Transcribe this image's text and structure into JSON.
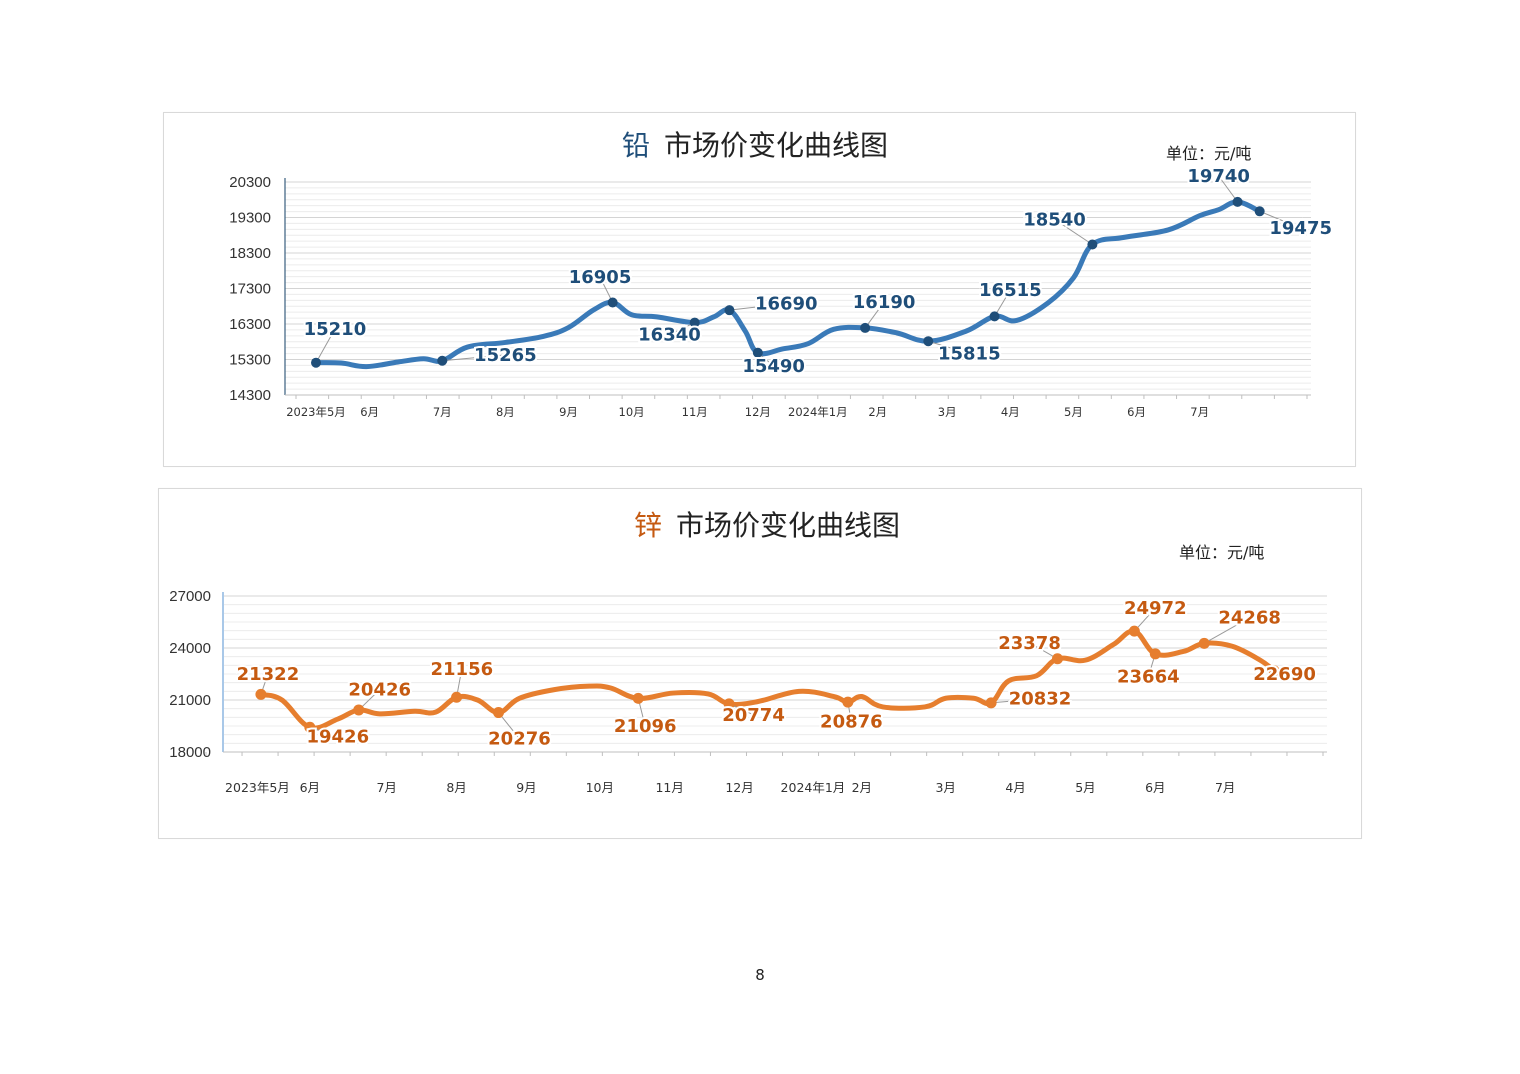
{
  "page": {
    "page_number": "8"
  },
  "chart_data": [
    {
      "type": "line",
      "metal": "铅",
      "title_rest": "市场价变化曲线图",
      "unit": "单位：元/吨",
      "colors": {
        "line": "#3a7ab8",
        "label": "#1f4e79",
        "metal": "#1f4e79"
      },
      "ylim": [
        14300,
        20300
      ],
      "yticks": [
        "20300",
        "19300",
        "18300",
        "17300",
        "16300",
        "15300",
        "14300"
      ],
      "xlim": [
        0,
        15.7
      ],
      "xticks": [
        "2023年5月",
        "6月",
        "7月",
        "8月",
        "9月",
        "10月",
        "11月",
        "12月",
        "2024年1月",
        "2月",
        "3月",
        "4月",
        "5月",
        "6月",
        "7月"
      ],
      "xtick_pos": [
        0,
        0.85,
        2.0,
        3.0,
        4.0,
        5.0,
        6.0,
        7.0,
        7.95,
        8.9,
        10.0,
        11.0,
        12.0,
        13.0,
        14.0
      ],
      "curve": [
        [
          0.0,
          15210
        ],
        [
          0.4,
          15200
        ],
        [
          0.8,
          15100
        ],
        [
          1.3,
          15230
        ],
        [
          1.7,
          15320
        ],
        [
          2.0,
          15265
        ],
        [
          2.4,
          15650
        ],
        [
          3.0,
          15780
        ],
        [
          3.6,
          15950
        ],
        [
          4.0,
          16200
        ],
        [
          4.4,
          16700
        ],
        [
          4.7,
          16905
        ],
        [
          5.0,
          16560
        ],
        [
          5.4,
          16500
        ],
        [
          6.0,
          16340
        ],
        [
          6.3,
          16500
        ],
        [
          6.55,
          16690
        ],
        [
          6.8,
          16100
        ],
        [
          7.0,
          15490
        ],
        [
          7.4,
          15600
        ],
        [
          7.8,
          15750
        ],
        [
          8.2,
          16150
        ],
        [
          8.7,
          16190
        ],
        [
          9.2,
          16050
        ],
        [
          9.7,
          15815
        ],
        [
          10.3,
          16100
        ],
        [
          10.75,
          16515
        ],
        [
          11.1,
          16400
        ],
        [
          11.6,
          16900
        ],
        [
          12.0,
          17600
        ],
        [
          12.3,
          18540
        ],
        [
          12.8,
          18740
        ],
        [
          13.5,
          18950
        ],
        [
          14.0,
          19350
        ],
        [
          14.3,
          19520
        ],
        [
          14.6,
          19740
        ],
        [
          14.95,
          19475
        ]
      ],
      "points": [
        {
          "x": 0.0,
          "y": 15210,
          "label": "15210",
          "lx": 0.3,
          "ly": 15990
        },
        {
          "x": 2.0,
          "y": 15265,
          "label": "15265",
          "lx": 3.0,
          "ly": 15260
        },
        {
          "x": 4.7,
          "y": 16905,
          "label": "16905",
          "lx": 4.5,
          "ly": 17450
        },
        {
          "x": 6.0,
          "y": 16340,
          "label": "16340",
          "lx": 5.6,
          "ly": 15830
        },
        {
          "x": 6.55,
          "y": 16690,
          "label": "16690",
          "lx": 7.45,
          "ly": 16710
        },
        {
          "x": 7.0,
          "y": 15490,
          "label": "15490",
          "lx": 7.25,
          "ly": 14950
        },
        {
          "x": 8.7,
          "y": 16190,
          "label": "16190",
          "lx": 9.0,
          "ly": 16750
        },
        {
          "x": 9.7,
          "y": 15815,
          "label": "15815",
          "lx": 10.35,
          "ly": 15300
        },
        {
          "x": 10.75,
          "y": 16515,
          "label": "16515",
          "lx": 11.0,
          "ly": 17090
        },
        {
          "x": 12.3,
          "y": 18540,
          "label": "18540",
          "lx": 11.7,
          "ly": 19080
        },
        {
          "x": 14.6,
          "y": 19740,
          "label": "19740",
          "lx": 14.3,
          "ly": 20300
        },
        {
          "x": 14.95,
          "y": 19475,
          "label": "19475",
          "lx": 15.6,
          "ly": 18830
        }
      ],
      "grid": true
    },
    {
      "type": "line",
      "metal": "锌",
      "title_rest": "市场价变化曲线图",
      "unit": "单位：元/吨",
      "colors": {
        "line": "#e67e2e",
        "label": "#c55a11",
        "metal": "#c55a11"
      },
      "ylim": [
        18000,
        27000
      ],
      "yticks": [
        "27000",
        "24000",
        "21000",
        "18000"
      ],
      "xlim": [
        0,
        15.7
      ],
      "xticks": [
        "2023年5月",
        "6月",
        "7月",
        "8月",
        "9月",
        "10月",
        "11月",
        "12月",
        "2024年1月",
        "2月",
        "3月",
        "4月",
        "5月",
        "6月",
        "7月"
      ],
      "xtick_pos": [
        0.45,
        1.2,
        2.3,
        3.3,
        4.3,
        5.35,
        6.35,
        7.35,
        8.4,
        9.1,
        10.3,
        11.3,
        12.3,
        13.3,
        14.3
      ],
      "curve": [
        [
          0.5,
          21322
        ],
        [
          0.8,
          21000
        ],
        [
          1.2,
          19426
        ],
        [
          1.6,
          19900
        ],
        [
          1.9,
          20426
        ],
        [
          2.2,
          20200
        ],
        [
          2.7,
          20350
        ],
        [
          3.0,
          20300
        ],
        [
          3.3,
          21156
        ],
        [
          3.6,
          21000
        ],
        [
          3.9,
          20276
        ],
        [
          4.2,
          21100
        ],
        [
          4.7,
          21600
        ],
        [
          5.2,
          21800
        ],
        [
          5.5,
          21700
        ],
        [
          5.9,
          21096
        ],
        [
          6.4,
          21400
        ],
        [
          6.9,
          21350
        ],
        [
          7.2,
          20774
        ],
        [
          7.6,
          20900
        ],
        [
          8.2,
          21500
        ],
        [
          8.7,
          21200
        ],
        [
          8.9,
          20876
        ],
        [
          9.1,
          21200
        ],
        [
          9.4,
          20600
        ],
        [
          10.0,
          20600
        ],
        [
          10.3,
          21100
        ],
        [
          10.7,
          21100
        ],
        [
          10.95,
          20832
        ],
        [
          11.2,
          22100
        ],
        [
          11.6,
          22400
        ],
        [
          11.9,
          23378
        ],
        [
          12.3,
          23300
        ],
        [
          12.7,
          24200
        ],
        [
          13.0,
          24972
        ],
        [
          13.3,
          23664
        ],
        [
          13.7,
          23800
        ],
        [
          14.0,
          24268
        ],
        [
          14.4,
          24100
        ],
        [
          14.8,
          23300
        ],
        [
          15.0,
          22690
        ]
      ],
      "points": [
        {
          "x": 0.5,
          "y": 21322,
          "label": "21322",
          "lx": 0.6,
          "ly": 22150
        },
        {
          "x": 1.2,
          "y": 19426,
          "label": "19426",
          "lx": 1.6,
          "ly": 18550
        },
        {
          "x": 1.9,
          "y": 20426,
          "label": "20426",
          "lx": 2.2,
          "ly": 21250
        },
        {
          "x": 3.3,
          "y": 21156,
          "label": "21156",
          "lx": 3.375,
          "ly": 22450
        },
        {
          "x": 3.9,
          "y": 20276,
          "label": "20276",
          "lx": 4.2,
          "ly": 18420
        },
        {
          "x": 5.9,
          "y": 21096,
          "label": "21096",
          "lx": 6.0,
          "ly": 19150
        },
        {
          "x": 7.2,
          "y": 20774,
          "label": "20774",
          "lx": 7.55,
          "ly": 19800
        },
        {
          "x": 8.9,
          "y": 20876,
          "label": "20876",
          "lx": 8.95,
          "ly": 19400
        },
        {
          "x": 10.95,
          "y": 20832,
          "label": "20832",
          "lx": 11.65,
          "ly": 20730
        },
        {
          "x": 11.9,
          "y": 23378,
          "label": "23378",
          "lx": 11.5,
          "ly": 23950
        },
        {
          "x": 13.0,
          "y": 24972,
          "label": "24972",
          "lx": 13.3,
          "ly": 25950
        },
        {
          "x": 13.3,
          "y": 23664,
          "label": "23664",
          "lx": 13.2,
          "ly": 22000
        },
        {
          "x": 14.0,
          "y": 24268,
          "label": "24268",
          "lx": 14.65,
          "ly": 25400
        },
        {
          "x": 15.0,
          "y": 22690,
          "label": "22690",
          "lx": 15.15,
          "ly": 22160
        }
      ],
      "grid": true
    }
  ]
}
